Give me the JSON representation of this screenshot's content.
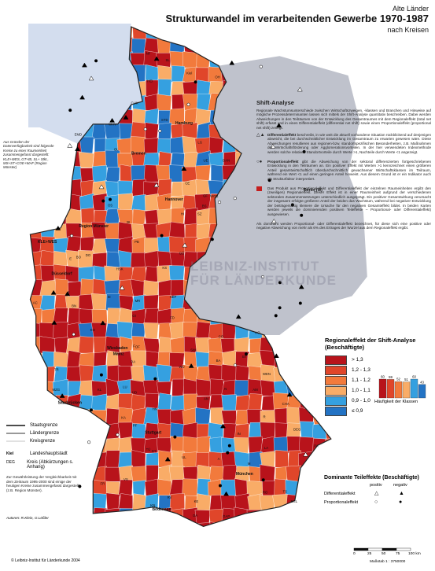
{
  "header": {
    "supertitle": "Alte Länder",
    "title": "Strukturwandel im verarbeitenden Gewerbe 1970-1987",
    "subtitle": "nach Kreisen"
  },
  "shift_box": {
    "title": "Shift-Analyse",
    "intro": "Regionale Wachstumsunterschiede zwischen Wirtschaftszweigen, -klassen und Branchen und Hinweise auf mögliche Prozessdeterminanten lassen sich mittels der Shift-Analyse quantitativ beschreiben. Dabei werden Abweichungen in den Teilräumen von der Entwicklung des Gesamtraumes mit dem Regionaleffekt (total net shift) erfasst und in einen Differentialeffekt (differential net shift) sowie einen Proportionaleffekt (proportional net shift) zerlegt.",
    "differential_label": "Differentialeffekt",
    "differential_text": "beschreibt, in wie weit die aktuell vorhandene Situation rückblickend auf denjenigen abweicht, die bei durchschnittlicher Entwicklung im Gesamtraum zu erwarten gewesen wäre. Diese Abweichungen resultieren aus regionen-bzw. standortspezifischen Besonderheiten, z.B. Maßnahmen der Wirtschaftsförderung oder Agglomerationsvorteilen. In der hier verwendeten Indexmethode werden solche relativen Standortvorteile durch Werte >1, Nachteile durch Werte <1 angezeigt.",
    "proportional_label": "Proportionaleffekt",
    "proportional_text": "gibt die Abweichung von der sektoral differenzierten fortgeschriebenen Entwicklung in den Teilräumen an. Ein positiver Effekt mit Werten >1 kennzeichnet einen größeren Anteil gesamtwirtschaftlich überdurchschnittlich gewachsener Wirtschaftsklassen im Teilraum, während ein Wert <1 auf einen geringen Anteil hinweist. Aus diesem Grund ist er ein Indikator auch als Strukturfaktor interpretiert.",
    "regional_text": "Das Produkt aus Proportionaleffekt und Differentialeffekt der einzelnen Raumeinheiten ergibt den (zweiligen) Regionaleffekt. Dieser Effekt ist in einer Raumeinheit aufgrund der verschiedenen sektoralen Zusammensetzungen unterschiedlich ausgeprägt. Ein positiver Gesamtwirkung verursacht der insgesamt erfolgte größeren Anteil der beiden das Wachstum, während bei negativer Entwicklung der beiträgemäßig kleinere die Ursache für den negativen Gesamteffekt bildet. In beiden Karten werden jeweils die dominierenden positiven Teileffekte – Proportional- oder Differentialeffekt) ausgewiesen.",
    "closing_text": "Als dominant werden Proportional- oder Differentialeffekt bezeichnet, für diese sich eine positive oder negative Abweichung von mehr als 6% des Ertrages der Wurzel aus dem Regionaleffekt ergibt."
  },
  "left_note": "Aus Gründen der Datenverfügbarkeit sind folgende Kreise zu einer Raumeinheit zusammengefasst dargestellt: KLE+WES, GT+BI, SL+ Stkt., MS+ST+COE+WAF (Region Münster)",
  "watermark": [
    "LEIBNIZ-INSTITUT",
    "FÜR LÄNDERKUNDE"
  ],
  "map_labels": [
    {
      "text": "Kiel",
      "lon": 10.13,
      "lat": 54.32
    },
    {
      "text": "Hamburg",
      "lon": 9.99,
      "lat": 53.55
    },
    {
      "text": "Bremen",
      "lon": 8.8,
      "lat": 53.08
    },
    {
      "text": "Hannover",
      "lon": 9.73,
      "lat": 52.37
    },
    {
      "text": "Berlin (W)",
      "lon": 13.38,
      "lat": 52.52
    },
    {
      "text": "Region Münster",
      "lon": 7.62,
      "lat": 51.96
    },
    {
      "text": "Düsseldorf",
      "lon": 6.78,
      "lat": 51.23
    },
    {
      "text": "Wiesbaden",
      "lon": 8.24,
      "lat": 50.08
    },
    {
      "text": "Mainz",
      "lon": 8.27,
      "lat": 49.99
    },
    {
      "text": "Saarbrücken",
      "lon": 6.99,
      "lat": 49.24
    },
    {
      "text": "Stuttgart",
      "lon": 9.18,
      "lat": 48.78
    },
    {
      "text": "München",
      "lon": 11.58,
      "lat": 48.14
    },
    {
      "text": "Bodensee",
      "lon": 9.4,
      "lat": 47.6
    },
    {
      "text": "NF",
      "lon": 9.05,
      "lat": 54.62
    },
    {
      "text": "SL",
      "lon": 9.56,
      "lat": 54.52
    },
    {
      "text": "HEI",
      "lon": 9.1,
      "lat": 54.2
    },
    {
      "text": "OH",
      "lon": 10.87,
      "lat": 54.26
    },
    {
      "text": "EMD",
      "lon": 7.21,
      "lat": 53.37
    },
    {
      "text": "WHV",
      "lon": 8.11,
      "lat": 53.53
    },
    {
      "text": "OL",
      "lon": 8.21,
      "lat": 53.14
    },
    {
      "text": "CUX",
      "lon": 8.69,
      "lat": 53.86
    },
    {
      "text": "STD",
      "lon": 9.48,
      "lat": 53.6
    },
    {
      "text": "LG",
      "lon": 10.41,
      "lat": 53.25
    },
    {
      "text": "UE",
      "lon": 10.56,
      "lat": 52.97
    },
    {
      "text": "DAN",
      "lon": 11.1,
      "lat": 52.97
    },
    {
      "text": "CE",
      "lon": 10.08,
      "lat": 52.62
    },
    {
      "text": "GF",
      "lon": 10.55,
      "lat": 52.43
    },
    {
      "text": "WOB",
      "lon": 10.78,
      "lat": 52.42
    },
    {
      "text": "BS",
      "lon": 10.52,
      "lat": 52.27
    },
    {
      "text": "SZ",
      "lon": 10.4,
      "lat": 52.15
    },
    {
      "text": "HI",
      "lon": 9.95,
      "lat": 52.15
    },
    {
      "text": "GÖ",
      "lon": 9.93,
      "lat": 51.54
    },
    {
      "text": "OS",
      "lon": 8.05,
      "lat": 52.28
    },
    {
      "text": "BI",
      "lon": 8.53,
      "lat": 52.02
    },
    {
      "text": "PB",
      "lon": 8.75,
      "lat": 51.72
    },
    {
      "text": "HSK",
      "lon": 8.3,
      "lat": 51.3
    },
    {
      "text": "DO",
      "lon": 7.47,
      "lat": 51.51
    },
    {
      "text": "BO",
      "lon": 7.22,
      "lat": 51.48
    },
    {
      "text": "E",
      "lon": 7.01,
      "lat": 51.46
    },
    {
      "text": "KLE+WES",
      "lon": 6.4,
      "lat": 51.72
    },
    {
      "text": "K",
      "lon": 6.96,
      "lat": 50.94
    },
    {
      "text": "AC",
      "lon": 6.08,
      "lat": 50.78
    },
    {
      "text": "BN",
      "lon": 7.1,
      "lat": 50.73
    },
    {
      "text": "SI",
      "lon": 8.02,
      "lat": 50.87
    },
    {
      "text": "KS",
      "lon": 9.48,
      "lat": 51.32
    },
    {
      "text": "HEF",
      "lon": 9.7,
      "lat": 50.87
    },
    {
      "text": "MR",
      "lon": 8.77,
      "lat": 50.81
    },
    {
      "text": "GI",
      "lon": 8.68,
      "lat": 50.58
    },
    {
      "text": "FD",
      "lon": 9.68,
      "lat": 50.55
    },
    {
      "text": "KO",
      "lon": 7.59,
      "lat": 50.36
    },
    {
      "text": "F",
      "lon": 8.68,
      "lat": 50.11
    },
    {
      "text": "OF",
      "lon": 8.77,
      "lat": 50.1
    },
    {
      "text": "DA",
      "lon": 8.65,
      "lat": 49.87
    },
    {
      "text": "TR",
      "lon": 6.64,
      "lat": 49.75
    },
    {
      "text": "MZG",
      "lon": 6.63,
      "lat": 49.44
    },
    {
      "text": "KL",
      "lon": 7.77,
      "lat": 49.44
    },
    {
      "text": "LU",
      "lon": 8.44,
      "lat": 49.48
    },
    {
      "text": "HD",
      "lon": 8.69,
      "lat": 49.4
    },
    {
      "text": "KA",
      "lon": 8.4,
      "lat": 49.01
    },
    {
      "text": "PF",
      "lon": 8.7,
      "lat": 48.89
    },
    {
      "text": "HN",
      "lon": 9.22,
      "lat": 49.14
    },
    {
      "text": "WÜ",
      "lon": 9.93,
      "lat": 49.79
    },
    {
      "text": "SW",
      "lon": 10.23,
      "lat": 50.05
    },
    {
      "text": "CO",
      "lon": 10.96,
      "lat": 50.26
    },
    {
      "text": "BA",
      "lon": 10.89,
      "lat": 49.89
    },
    {
      "text": "HO",
      "lon": 11.92,
      "lat": 50.32
    },
    {
      "text": "BT",
      "lon": 11.58,
      "lat": 49.95
    },
    {
      "text": "N",
      "lon": 11.08,
      "lat": 49.45
    },
    {
      "text": "AN",
      "lon": 10.57,
      "lat": 49.3
    },
    {
      "text": "AM",
      "lon": 11.86,
      "lat": 49.44
    },
    {
      "text": "WEN",
      "lon": 12.16,
      "lat": 49.68
    },
    {
      "text": "R",
      "lon": 12.1,
      "lat": 49.02
    },
    {
      "text": "CHA",
      "lon": 12.66,
      "lat": 49.22
    },
    {
      "text": "DEG",
      "lon": 12.96,
      "lat": 48.83
    },
    {
      "text": "PA",
      "lon": 13.46,
      "lat": 48.57
    },
    {
      "text": "LA",
      "lon": 12.15,
      "lat": 48.54
    },
    {
      "text": "IN",
      "lon": 11.43,
      "lat": 48.76
    },
    {
      "text": "A",
      "lon": 10.9,
      "lat": 48.37
    },
    {
      "text": "UL",
      "lon": 9.99,
      "lat": 48.4
    },
    {
      "text": "RT",
      "lon": 9.2,
      "lat": 48.49
    },
    {
      "text": "TÜ",
      "lon": 9.05,
      "lat": 48.52
    },
    {
      "text": "FR",
      "lon": 7.85,
      "lat": 47.99
    },
    {
      "text": "VS",
      "lon": 8.46,
      "lat": 48.06
    },
    {
      "text": "KN",
      "lon": 9.17,
      "lat": 47.66
    },
    {
      "text": "RV",
      "lon": 9.61,
      "lat": 47.78
    },
    {
      "text": "OA",
      "lon": 10.28,
      "lat": 47.5
    },
    {
      "text": "KE",
      "lon": 10.31,
      "lat": 47.72
    },
    {
      "text": "GAP",
      "lon": 11.1,
      "lat": 47.49
    },
    {
      "text": "RO",
      "lon": 12.12,
      "lat": 47.86
    },
    {
      "text": "BGL",
      "lon": 12.88,
      "lat": 47.72
    },
    {
      "text": "TS",
      "lon": 12.64,
      "lat": 47.87
    },
    {
      "text": "M",
      "lon": 11.7,
      "lat": 48.3
    }
  ],
  "region_classes": {
    "title": "Regionaleffekt der Shift-Analyse (Beschäftigte)",
    "classes": [
      {
        "label": "> 1,3",
        "color": "#b8131b",
        "count": 60
      },
      {
        "label": "1,2 - 1,3",
        "color": "#e0462a",
        "count": 59
      },
      {
        "label": "1,1 - 1,2",
        "color": "#f27a3c",
        "count": 52
      },
      {
        "label": "1,0 - 1,1",
        "color": "#f9ac67",
        "count": 51
      },
      {
        "label": "0,9 - 1,0",
        "color": "#35a0e0",
        "count": 60
      },
      {
        "label": "≤ 0,9",
        "color": "#2373c4",
        "count": 43
      }
    ],
    "histogram_caption": "Häufigkeit der Klassen"
  },
  "line_legend": [
    {
      "label": "Staatsgrenze",
      "style": "state"
    },
    {
      "label": "Ländergrenze",
      "style": "land"
    },
    {
      "label": "Kreisgrenze",
      "style": "kreis"
    }
  ],
  "symbol_legend": [
    {
      "symbol": "Kiel",
      "label": "Landeshauptstadt"
    },
    {
      "symbol": "DEG",
      "label": "Kreis (Abkürzungen s. Anhang)"
    }
  ],
  "footnote": "Zur Gewährleistung der Vergleichbarkeit mit dem Zeitraum 1995-2000 sind einige der heutigen Kreise zusammengefasst dargestellt (z.B. Region Münster).",
  "authors": "Autoren: R.Klein, G.Lößler",
  "copyright": "© Leibniz-Institut für Länderkunde 2004",
  "dominant": {
    "title": "Dominante Teileffekte (Beschäftigte)",
    "col_pos": "positiv",
    "col_neg": "negativ",
    "rows": [
      {
        "label": "Differentialeffekt",
        "pos": "△",
        "neg": "▲"
      },
      {
        "label": "Proportionaleffekt",
        "pos": "○",
        "neg": "●"
      }
    ]
  },
  "scale": {
    "ticks": [
      "0",
      "25",
      "50",
      "75",
      "100 km"
    ],
    "label": "Maßstab 1 : 3750000"
  }
}
